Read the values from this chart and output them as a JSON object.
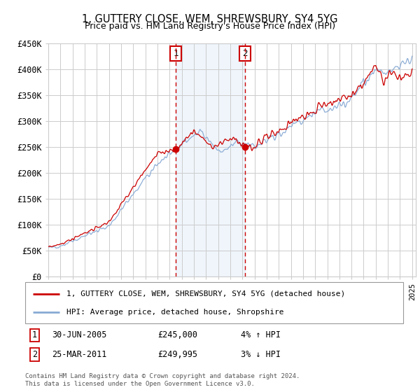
{
  "title": "1, GUTTERY CLOSE, WEM, SHREWSBURY, SY4 5YG",
  "subtitle": "Price paid vs. HM Land Registry's House Price Index (HPI)",
  "ylim": [
    0,
    450000
  ],
  "yticks": [
    0,
    50000,
    100000,
    150000,
    200000,
    250000,
    300000,
    350000,
    400000,
    450000
  ],
  "ytick_labels": [
    "£0",
    "£50K",
    "£100K",
    "£150K",
    "£200K",
    "£250K",
    "£300K",
    "£350K",
    "£400K",
    "£450K"
  ],
  "sale1_date": 2005.5,
  "sale1_label": "1",
  "sale1_price": 245000,
  "sale1_text": "30-JUN-2005",
  "sale1_price_text": "£245,000",
  "sale1_hpi_text": "4% ↑ HPI",
  "sale2_date": 2011.22,
  "sale2_label": "2",
  "sale2_price": 249995,
  "sale2_text": "25-MAR-2011",
  "sale2_price_text": "£249,995",
  "sale2_hpi_text": "3% ↓ HPI",
  "legend_line1": "1, GUTTERY CLOSE, WEM, SHREWSBURY, SY4 5YG (detached house)",
  "legend_line2": "HPI: Average price, detached house, Shropshire",
  "footer": "Contains HM Land Registry data © Crown copyright and database right 2024.\nThis data is licensed under the Open Government Licence v3.0.",
  "property_line_color": "#cc0000",
  "hpi_line_color": "#88aad4",
  "shade_color": "#ddeeff",
  "marker_box_color": "#cc0000",
  "dot_color": "#cc0000",
  "grid_color": "#cccccc",
  "background_color": "#ffffff"
}
